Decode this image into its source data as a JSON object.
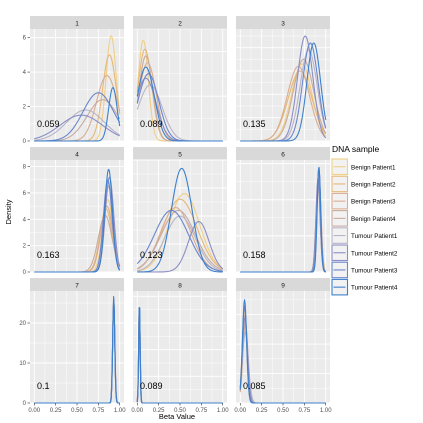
{
  "chart_data": {
    "type": "line",
    "xlabel": "Beta Value",
    "ylabel": "Density",
    "x_ticks": [
      "0.00",
      "0.25",
      "0.50",
      "0.75",
      "1.00"
    ],
    "legend": {
      "title": "DNA sample",
      "position": "right",
      "entries": [
        "Benign Patient1",
        "Benign Patient2",
        "Benign Patient3",
        "Benign Patient4",
        "Tumour Patient1",
        "Tumour Patient2",
        "Tumour Patient3",
        "Tumour Patient4"
      ]
    },
    "colors": {
      "Benign Patient1": "#f0cf86",
      "Benign Patient2": "#e6b878",
      "Benign Patient3": "#d9ad91",
      "Benign Patient4": "#c7aba0",
      "Tumour Patient1": "#b9b4c8",
      "Tumour Patient2": "#8a8ec4",
      "Tumour Patient3": "#6a86cc",
      "Tumour Patient4": "#3c80cc",
      "panel_bg": "#ebebeb",
      "strip_bg": "#d9d9d9",
      "grid": "#ffffff"
    },
    "panels": [
      {
        "label": "1",
        "stat": "0.059",
        "ymax": 6.5,
        "yticks": [
          "0",
          "2",
          "4",
          "6"
        ],
        "benign": [
          {
            "mu": 0.9,
            "sd": 0.06,
            "peak": 6.1
          },
          {
            "mu": 0.88,
            "sd": 0.08,
            "peak": 5.0
          },
          {
            "mu": 0.85,
            "sd": 0.12,
            "peak": 3.8
          },
          {
            "mu": 0.8,
            "sd": 0.18,
            "peak": 2.4
          }
        ],
        "tumour": [
          {
            "mu": 0.6,
            "sd": 0.22,
            "peak": 1.8
          },
          {
            "mu": 0.55,
            "sd": 0.25,
            "peak": 1.5
          },
          {
            "mu": 0.75,
            "sd": 0.18,
            "peak": 2.8
          },
          {
            "mu": 0.92,
            "sd": 0.05,
            "peak": 3.1
          }
        ]
      },
      {
        "label": "2",
        "stat": "0.089",
        "ymax": 5.0,
        "yticks": [
          "0",
          "2",
          "4"
        ],
        "benign": [
          {
            "mu": 0.07,
            "sd": 0.06,
            "peak": 4.5
          },
          {
            "mu": 0.09,
            "sd": 0.08,
            "peak": 4.1
          },
          {
            "mu": 0.12,
            "sd": 0.1,
            "peak": 3.5
          },
          {
            "mu": 0.1,
            "sd": 0.08,
            "peak": 3.8
          }
        ],
        "tumour": [
          {
            "mu": 0.15,
            "sd": 0.14,
            "peak": 2.5
          },
          {
            "mu": 0.1,
            "sd": 0.12,
            "peak": 2.8
          },
          {
            "mu": 0.13,
            "sd": 0.12,
            "peak": 3.0
          },
          {
            "mu": 0.1,
            "sd": 0.1,
            "peak": 3.3
          }
        ]
      },
      {
        "label": "3",
        "stat": "0.135",
        "ymax": 4.8,
        "yticks": [
          "0",
          "1",
          "2",
          "3",
          "4"
        ],
        "benign": [
          {
            "mu": 0.72,
            "sd": 0.12,
            "peak": 3.3
          },
          {
            "mu": 0.7,
            "sd": 0.14,
            "peak": 3.0
          },
          {
            "mu": 0.68,
            "sd": 0.13,
            "peak": 3.2
          },
          {
            "mu": 0.74,
            "sd": 0.12,
            "peak": 3.5
          }
        ],
        "tumour": [
          {
            "mu": 0.8,
            "sd": 0.1,
            "peak": 3.9
          },
          {
            "mu": 0.76,
            "sd": 0.09,
            "peak": 4.5
          },
          {
            "mu": 0.82,
            "sd": 0.09,
            "peak": 4.2
          },
          {
            "mu": 0.86,
            "sd": 0.08,
            "peak": 4.2
          }
        ]
      },
      {
        "label": "4",
        "stat": "0.163",
        "ymax": 8.5,
        "yticks": [
          "0",
          "2",
          "4",
          "6",
          "8"
        ],
        "benign": [
          {
            "mu": 0.86,
            "sd": 0.06,
            "peak": 5.5
          },
          {
            "mu": 0.84,
            "sd": 0.07,
            "peak": 4.8
          },
          {
            "mu": 0.85,
            "sd": 0.07,
            "peak": 5.0
          },
          {
            "mu": 0.83,
            "sd": 0.08,
            "peak": 4.3
          }
        ],
        "tumour": [
          {
            "mu": 0.87,
            "sd": 0.05,
            "peak": 6.5
          },
          {
            "mu": 0.88,
            "sd": 0.05,
            "peak": 7.2
          },
          {
            "mu": 0.86,
            "sd": 0.05,
            "peak": 7.0
          },
          {
            "mu": 0.87,
            "sd": 0.045,
            "peak": 7.8
          }
        ]
      },
      {
        "label": "5",
        "stat": "0.123",
        "ymax": 4.0,
        "yticks": [
          "0",
          "1",
          "2",
          "3"
        ],
        "benign": [
          {
            "mu": 0.55,
            "sd": 0.18,
            "peak": 2.8
          },
          {
            "mu": 0.5,
            "sd": 0.2,
            "peak": 2.6
          },
          {
            "mu": 0.45,
            "sd": 0.18,
            "peak": 2.3
          },
          {
            "mu": 0.48,
            "sd": 0.2,
            "peak": 2.2
          }
        ],
        "tumour": [
          {
            "mu": 0.5,
            "sd": 0.18,
            "peak": 2.0
          },
          {
            "mu": 0.72,
            "sd": 0.12,
            "peak": 1.8
          },
          {
            "mu": 0.4,
            "sd": 0.2,
            "peak": 2.2
          },
          {
            "mu": 0.52,
            "sd": 0.12,
            "peak": 3.7
          }
        ]
      },
      {
        "label": "6",
        "stat": "0.158",
        "ymax": 15.5,
        "yticks": [
          "0",
          "5",
          "10",
          "15"
        ],
        "benign": [
          {
            "mu": 0.92,
            "sd": 0.025,
            "peak": 13.0
          },
          {
            "mu": 0.91,
            "sd": 0.025,
            "peak": 12.5
          },
          {
            "mu": 0.92,
            "sd": 0.025,
            "peak": 13.5
          },
          {
            "mu": 0.91,
            "sd": 0.025,
            "peak": 12.0
          }
        ],
        "tumour": [
          {
            "mu": 0.92,
            "sd": 0.022,
            "peak": 14.0
          },
          {
            "mu": 0.91,
            "sd": 0.024,
            "peak": 13.0
          },
          {
            "mu": 0.92,
            "sd": 0.022,
            "peak": 14.5
          },
          {
            "mu": 0.92,
            "sd": 0.02,
            "peak": 14.5
          }
        ]
      },
      {
        "label": "7",
        "stat": "0.1",
        "ymax": 28.0,
        "yticks": [
          "0",
          "10",
          "20"
        ],
        "benign": [
          {
            "mu": 0.93,
            "sd": 0.012,
            "peak": 26.0
          },
          {
            "mu": 0.93,
            "sd": 0.013,
            "peak": 25.0
          },
          {
            "mu": 0.93,
            "sd": 0.012,
            "peak": 26.5
          },
          {
            "mu": 0.93,
            "sd": 0.013,
            "peak": 25.5
          }
        ],
        "tumour": [
          {
            "mu": 0.93,
            "sd": 0.012,
            "peak": 26.5
          },
          {
            "mu": 0.93,
            "sd": 0.013,
            "peak": 25.0
          },
          {
            "mu": 0.93,
            "sd": 0.012,
            "peak": 26.0
          },
          {
            "mu": 0.93,
            "sd": 0.012,
            "peak": 26.8
          }
        ]
      },
      {
        "label": "8",
        "stat": "0.089",
        "ymax": 42.0,
        "yticks": [
          "0",
          "10",
          "20",
          "30",
          "40"
        ],
        "benign": [
          {
            "mu": 0.025,
            "sd": 0.008,
            "peak": 38.0
          },
          {
            "mu": 0.025,
            "sd": 0.009,
            "peak": 36.0
          },
          {
            "mu": 0.025,
            "sd": 0.008,
            "peak": 39.0
          },
          {
            "mu": 0.025,
            "sd": 0.009,
            "peak": 37.0
          }
        ],
        "tumour": [
          {
            "mu": 0.025,
            "sd": 0.008,
            "peak": 38.5
          },
          {
            "mu": 0.025,
            "sd": 0.009,
            "peak": 36.5
          },
          {
            "mu": 0.025,
            "sd": 0.008,
            "peak": 39.0
          },
          {
            "mu": 0.025,
            "sd": 0.008,
            "peak": 39.5
          }
        ]
      },
      {
        "label": "9",
        "stat": "0.085",
        "ymax": 19.0,
        "yticks": [
          "0",
          "5",
          "10",
          "15"
        ],
        "benign": [
          {
            "mu": 0.05,
            "sd": 0.025,
            "peak": 16.0
          },
          {
            "mu": 0.05,
            "sd": 0.03,
            "peak": 14.0
          },
          {
            "mu": 0.06,
            "sd": 0.03,
            "peak": 13.5
          },
          {
            "mu": 0.055,
            "sd": 0.028,
            "peak": 15.0
          }
        ],
        "tumour": [
          {
            "mu": 0.06,
            "sd": 0.035,
            "peak": 12.0
          },
          {
            "mu": 0.055,
            "sd": 0.03,
            "peak": 14.5
          },
          {
            "mu": 0.05,
            "sd": 0.025,
            "peak": 16.5
          },
          {
            "mu": 0.05,
            "sd": 0.025,
            "peak": 17.5
          }
        ]
      }
    ]
  }
}
